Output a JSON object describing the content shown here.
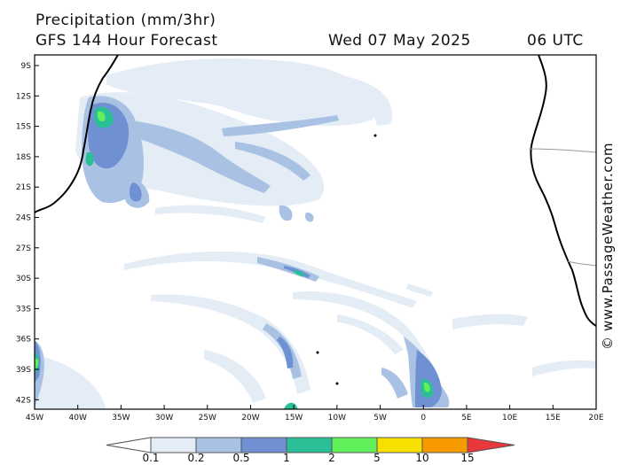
{
  "header": {
    "variable": "Precipitation (mm/3hr)",
    "forecast": "GFS 144 Hour Forecast",
    "date": "Wed 07 May 2025",
    "time": "06 UTC"
  },
  "map": {
    "lon_labels": [
      "45W",
      "40W",
      "35W",
      "30W",
      "25W",
      "20W",
      "15W",
      "10W",
      "5W",
      "0",
      "5E",
      "10E",
      "15E",
      "20E"
    ],
    "lat_labels": [
      "9S",
      "12S",
      "15S",
      "18S",
      "21S",
      "24S",
      "27S",
      "30S",
      "33S",
      "36S",
      "39S",
      "42S"
    ],
    "land_color": "#000000",
    "border_color": "#999999"
  },
  "credit": "© www.PassageWeather.com",
  "legend": {
    "labels": [
      "0.1",
      "0.2",
      "0.5",
      "1",
      "2",
      "5",
      "10",
      "15"
    ],
    "colors": [
      "#ffffff",
      "#e4ecf6",
      "#a9c2e3",
      "#6f91d4",
      "#2bbf98",
      "#62f05a",
      "#f7e000",
      "#f79a00",
      "#e8383c"
    ]
  }
}
